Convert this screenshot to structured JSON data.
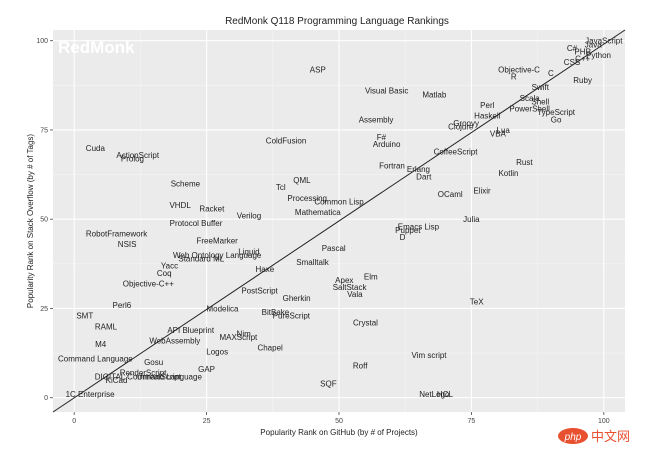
{
  "chart_data": {
    "type": "scatter",
    "title": "RedMonk Q118 Programming Language Rankings",
    "xlabel": "Popularity Rank on GitHub (by # of Projects)",
    "ylabel": "Popularity Rank on Stack Overflow (by # of Tags)",
    "xlim": [
      -4,
      104
    ],
    "ylim": [
      -4,
      103
    ],
    "x_ticks": [
      0,
      25,
      50,
      75,
      100
    ],
    "y_ticks": [
      0,
      25,
      50,
      75,
      100
    ],
    "grid": true,
    "background": "#ebebeb",
    "diagonal": true,
    "points": [
      {
        "label": "JavaScript",
        "x": 100,
        "y": 100
      },
      {
        "label": "Java",
        "x": 98,
        "y": 99
      },
      {
        "label": "C#",
        "x": 94,
        "y": 98
      },
      {
        "label": "PHP",
        "x": 96,
        "y": 97
      },
      {
        "label": "Python",
        "x": 99,
        "y": 96
      },
      {
        "label": "CSS",
        "x": 94,
        "y": 94
      },
      {
        "label": "C++",
        "x": 96,
        "y": 95
      },
      {
        "label": "C",
        "x": 90,
        "y": 91
      },
      {
        "label": "Objective-C",
        "x": 84,
        "y": 92
      },
      {
        "label": "R",
        "x": 83,
        "y": 90
      },
      {
        "label": "Ruby",
        "x": 96,
        "y": 89
      },
      {
        "label": "Swift",
        "x": 88,
        "y": 87
      },
      {
        "label": "Matlab",
        "x": 68,
        "y": 85
      },
      {
        "label": "Visual Basic",
        "x": 59,
        "y": 86
      },
      {
        "label": "ASP",
        "x": 46,
        "y": 92
      },
      {
        "label": "Scala",
        "x": 86,
        "y": 84
      },
      {
        "label": "Shell",
        "x": 88,
        "y": 83
      },
      {
        "label": "Perl",
        "x": 78,
        "y": 82
      },
      {
        "label": "PowerShell",
        "x": 86,
        "y": 81
      },
      {
        "label": "TypeScript",
        "x": 91,
        "y": 80
      },
      {
        "label": "Haskell",
        "x": 78,
        "y": 79
      },
      {
        "label": "Go",
        "x": 91,
        "y": 78
      },
      {
        "label": "Assembly",
        "x": 57,
        "y": 78
      },
      {
        "label": "Groovy",
        "x": 74,
        "y": 77
      },
      {
        "label": "Clojure",
        "x": 73,
        "y": 76
      },
      {
        "label": "Lua",
        "x": 81,
        "y": 75
      },
      {
        "label": "VBA",
        "x": 80,
        "y": 74
      },
      {
        "label": "F#",
        "x": 58,
        "y": 73
      },
      {
        "label": "Arduino",
        "x": 59,
        "y": 71
      },
      {
        "label": "ColdFusion",
        "x": 40,
        "y": 72
      },
      {
        "label": "CoffeeScript",
        "x": 72,
        "y": 69
      },
      {
        "label": "Cuda",
        "x": 4,
        "y": 70
      },
      {
        "label": "ActionScript",
        "x": 12,
        "y": 68
      },
      {
        "label": "Prolog",
        "x": 11,
        "y": 67
      },
      {
        "label": "Rust",
        "x": 85,
        "y": 66
      },
      {
        "label": "Fortran",
        "x": 60,
        "y": 65
      },
      {
        "label": "Erlang",
        "x": 65,
        "y": 64
      },
      {
        "label": "Kotlin",
        "x": 82,
        "y": 63
      },
      {
        "label": "Dart",
        "x": 66,
        "y": 62
      },
      {
        "label": "QML",
        "x": 43,
        "y": 61
      },
      {
        "label": "Scheme",
        "x": 21,
        "y": 60
      },
      {
        "label": "Tcl",
        "x": 39,
        "y": 59
      },
      {
        "label": "OCaml",
        "x": 71,
        "y": 57
      },
      {
        "label": "Elixir",
        "x": 77,
        "y": 58
      },
      {
        "label": "Processing",
        "x": 44,
        "y": 56
      },
      {
        "label": "Common Lisp",
        "x": 50,
        "y": 55
      },
      {
        "label": "VHDL",
        "x": 20,
        "y": 54
      },
      {
        "label": "Racket",
        "x": 26,
        "y": 53
      },
      {
        "label": "Mathematica",
        "x": 46,
        "y": 52
      },
      {
        "label": "Verilog",
        "x": 33,
        "y": 51
      },
      {
        "label": "Protocol Buffer",
        "x": 23,
        "y": 49
      },
      {
        "label": "Julia",
        "x": 75,
        "y": 50
      },
      {
        "label": "Emacs Lisp",
        "x": 65,
        "y": 48
      },
      {
        "label": "Puppet",
        "x": 63,
        "y": 47
      },
      {
        "label": "D",
        "x": 62,
        "y": 45
      },
      {
        "label": "RobotFramework",
        "x": 8,
        "y": 46
      },
      {
        "label": "FreeMarker",
        "x": 27,
        "y": 44
      },
      {
        "label": "NSIS",
        "x": 10,
        "y": 43
      },
      {
        "label": "Pascal",
        "x": 49,
        "y": 42
      },
      {
        "label": "Liquid",
        "x": 33,
        "y": 41
      },
      {
        "label": "Web Ontology Language",
        "x": 27,
        "y": 40
      },
      {
        "label": "Standard ML",
        "x": 24,
        "y": 39
      },
      {
        "label": "Smalltalk",
        "x": 45,
        "y": 38
      },
      {
        "label": "Yacc",
        "x": 18,
        "y": 37
      },
      {
        "label": "Haxe",
        "x": 36,
        "y": 36
      },
      {
        "label": "Coq",
        "x": 17,
        "y": 35
      },
      {
        "label": "Elm",
        "x": 56,
        "y": 34
      },
      {
        "label": "Apex",
        "x": 51,
        "y": 33
      },
      {
        "label": "Objective-C++",
        "x": 14,
        "y": 32
      },
      {
        "label": "SaltStack",
        "x": 52,
        "y": 31
      },
      {
        "label": "PostScript",
        "x": 35,
        "y": 30
      },
      {
        "label": "Vala",
        "x": 53,
        "y": 29
      },
      {
        "label": "Gherkin",
        "x": 42,
        "y": 28
      },
      {
        "label": "TeX",
        "x": 76,
        "y": 27
      },
      {
        "label": "Perl6",
        "x": 9,
        "y": 26
      },
      {
        "label": "Modelica",
        "x": 28,
        "y": 25
      },
      {
        "label": "BitBake",
        "x": 38,
        "y": 24
      },
      {
        "label": "SMT",
        "x": 2,
        "y": 23
      },
      {
        "label": "PureScript",
        "x": 41,
        "y": 23
      },
      {
        "label": "Crystal",
        "x": 55,
        "y": 21
      },
      {
        "label": "RAML",
        "x": 6,
        "y": 20
      },
      {
        "label": "API Blueprint",
        "x": 22,
        "y": 19
      },
      {
        "label": "Nim",
        "x": 32,
        "y": 18
      },
      {
        "label": "MAXScript",
        "x": 31,
        "y": 17
      },
      {
        "label": "WebAssembly",
        "x": 19,
        "y": 16
      },
      {
        "label": "M4",
        "x": 5,
        "y": 15
      },
      {
        "label": "Chapel",
        "x": 37,
        "y": 14
      },
      {
        "label": "Logos",
        "x": 27,
        "y": 13
      },
      {
        "label": "Vim script",
        "x": 67,
        "y": 12
      },
      {
        "label": "Command Language",
        "x": 4,
        "y": 11
      },
      {
        "label": "Gosu",
        "x": 15,
        "y": 10
      },
      {
        "label": "Roff",
        "x": 54,
        "y": 9
      },
      {
        "label": "GAP",
        "x": 25,
        "y": 8
      },
      {
        "label": "RenderScript",
        "x": 13,
        "y": 7
      },
      {
        "label": "DIGITAL Command Language",
        "x": 14,
        "y": 6
      },
      {
        "label": "UnrealScript",
        "x": 16,
        "y": 6
      },
      {
        "label": "KiCad",
        "x": 8,
        "y": 5
      },
      {
        "label": "SQF",
        "x": 48,
        "y": 4
      },
      {
        "label": "NetLogo",
        "x": 68,
        "y": 1
      },
      {
        "label": "HCL",
        "x": 70,
        "y": 1
      },
      {
        "label": "1C Enterprise",
        "x": 3,
        "y": 1
      }
    ],
    "watermark": "RedMonk"
  },
  "footer_watermark": {
    "brand": "php",
    "site": "中文网",
    "color": "#e8502f"
  }
}
